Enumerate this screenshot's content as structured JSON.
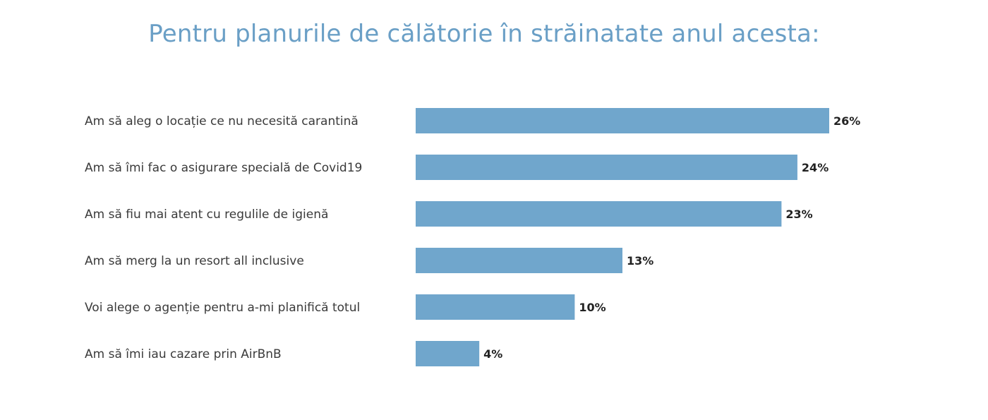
{
  "colors": {
    "title": "#6a9fc6",
    "bar": "#70a6cc",
    "label": "#3a3a3a",
    "value": "#222222"
  },
  "chart_data": {
    "type": "bar",
    "orientation": "horizontal",
    "title": "Pentru planurile de călătorie în străinatate anul acesta:",
    "categories": [
      "Am să aleg o locație ce nu necesită carantină",
      "Am să îmi fac o asigurare specială de Covid19",
      "Am să fiu mai atent cu regulile de igienă",
      "Am să merg la un resort all inclusive",
      "Voi alege o agenție pentru a-mi planifică totul",
      "Am să îmi iau cazare prin AirBnB"
    ],
    "values": [
      26,
      24,
      23,
      13,
      10,
      4
    ],
    "value_labels": [
      "26%",
      "24%",
      "23%",
      "13%",
      "10%",
      "4%"
    ],
    "unit": "%",
    "xlim": [
      0,
      26
    ],
    "grid": false,
    "legend": "none"
  }
}
